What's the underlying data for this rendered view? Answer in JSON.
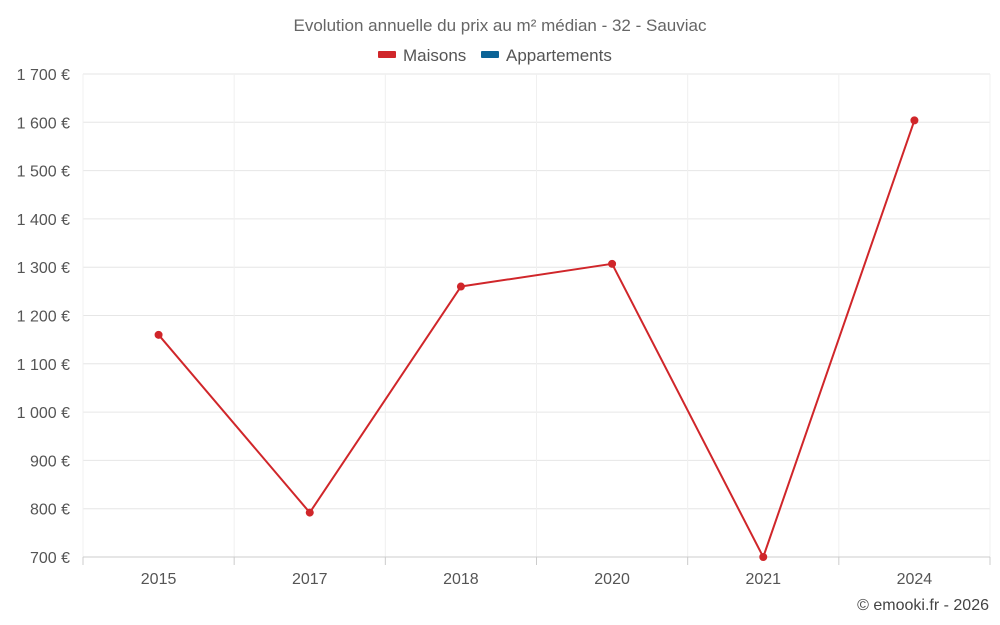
{
  "chart_data": {
    "type": "line",
    "title": "Evolution annuelle du prix au m² médian - 32 - Sauviac",
    "categories": [
      "2015",
      "2017",
      "2018",
      "2020",
      "2021",
      "2024"
    ],
    "series": [
      {
        "name": "Maisons",
        "color": "#d0262a",
        "values": [
          1160,
          792,
          1260,
          1307,
          700,
          1604
        ]
      },
      {
        "name": "Appartements",
        "color": "#0b6396",
        "values": [
          null,
          null,
          null,
          null,
          null,
          null
        ]
      }
    ],
    "ylim": [
      700,
      1700
    ],
    "yticks": [
      700,
      800,
      900,
      1000,
      1100,
      1200,
      1300,
      1400,
      1500,
      1600,
      1700
    ],
    "ytick_labels": [
      "700 €",
      "800 €",
      "900 €",
      "1 000 €",
      "1 100 €",
      "1 200 €",
      "1 300 €",
      "1 400 €",
      "1 500 €",
      "1 600 €",
      "1 700 €"
    ],
    "xlabel": "",
    "ylabel": "",
    "grid": true,
    "legend_position": "top-center"
  },
  "credit": "© emooki.fr - 2026"
}
